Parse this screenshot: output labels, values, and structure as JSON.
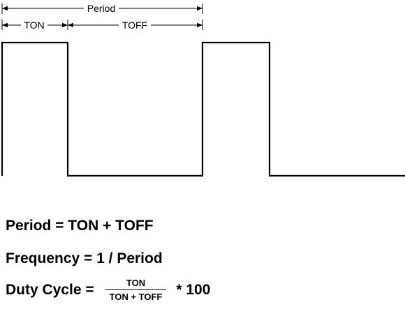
{
  "diagram": {
    "period_label": "Period",
    "ton_label": "TON",
    "toff_label": "TOFF"
  },
  "formulas": {
    "period": "Period = TON + TOFF",
    "frequency": "Frequency = 1 / Period",
    "duty_label": "Duty Cycle =",
    "duty_numerator": "TON",
    "duty_denominator": "TON + TOFF",
    "duty_multiplier": "* 100"
  }
}
